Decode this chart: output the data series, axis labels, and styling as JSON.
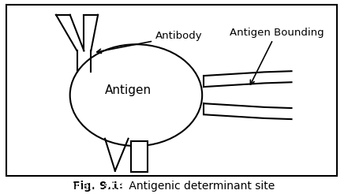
{
  "title_bold": "Fig. 9.1:",
  "title_normal": " Antigenic determinant site",
  "antigen_label": "Antigen",
  "antibody_label": "Antibody",
  "antigen_bounding_label": "Antigen Bounding",
  "bg_color": "#ffffff",
  "border_color": "#000000",
  "line_color": "#000000",
  "title_fontsize": 10,
  "label_fontsize": 9.5
}
